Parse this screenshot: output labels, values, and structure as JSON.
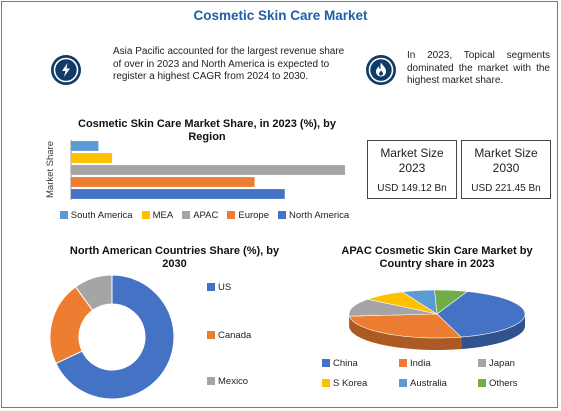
{
  "page": {
    "title": "Cosmetic Skin Care Market",
    "info_left": "Asia Pacific accounted for the largest revenue share of over in 2023 and North America is expected to register a highest CAGR from 2024 to 2030.",
    "info_right": "In 2023, Topical segments dominated the market with the highest market share.",
    "icon_left": "lightning-icon",
    "icon_right": "flame-icon"
  },
  "market_size": [
    {
      "label": "Market Size",
      "year": "2023",
      "value": "USD 149.12 Bn"
    },
    {
      "label": "Market Size",
      "year": "2030",
      "value": "USD 221.45 Bn"
    }
  ],
  "chart_data": [
    {
      "type": "bar",
      "orientation": "horizontal",
      "title": "Cosmetic Skin Care Market Share, in 2023 (%), by Region",
      "ylabel": "Market Share",
      "categories": [
        "South America",
        "MEA",
        "APAC",
        "Europe",
        "North America"
      ],
      "values": [
        10,
        15,
        100,
        67,
        78
      ],
      "colors": [
        "#5b9bd5",
        "#ffc000",
        "#a5a5a5",
        "#ed7d31",
        "#4472c4"
      ],
      "legend": "bottom",
      "grid": false
    },
    {
      "type": "pie",
      "variant": "donut",
      "title": "North American Countries Share (%), by 2030",
      "categories": [
        "US",
        "Canada",
        "Mexico"
      ],
      "values": [
        68,
        22,
        10
      ],
      "colors": [
        "#4472c4",
        "#ed7d31",
        "#a5a5a5"
      ],
      "legend": "right"
    },
    {
      "type": "pie",
      "variant": "3d",
      "title": "APAC  Cosmetic Skin Care Market by Country share in 2023",
      "categories": [
        "China",
        "India",
        "Japan",
        "S Korea",
        "Australia",
        "Others"
      ],
      "values": [
        40,
        28,
        12,
        8,
        6,
        6
      ],
      "colors": [
        "#4472c4",
        "#ed7d31",
        "#a5a5a5",
        "#ffc000",
        "#5b9bd5",
        "#70ad47"
      ],
      "legend": "bottom"
    }
  ]
}
